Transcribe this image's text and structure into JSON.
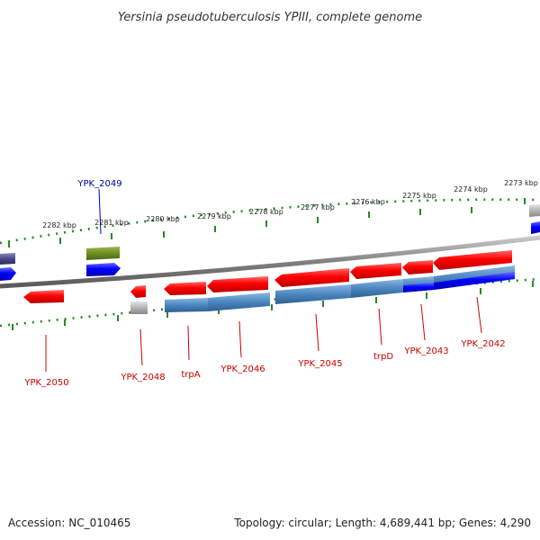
{
  "title": "Yersinia pseudotuberculosis YPIII, complete genome",
  "scale_labels": [
    "2282 kbp",
    "2281 kbp",
    "2280 kbp",
    "2279 kbp",
    "2278 kbp",
    "2277 kbp",
    "2276 kbp",
    "2275 kbp",
    "2274 kbp",
    "2273 kbp"
  ],
  "genes": [
    {
      "name": "YPK_2049",
      "color": "#0000aa"
    },
    {
      "name": "YPK_2050",
      "color": "#cc0000"
    },
    {
      "name": "YPK_2048",
      "color": "#cc0000"
    },
    {
      "name": "trpA",
      "color": "#cc0000"
    },
    {
      "name": "YPK_2046",
      "color": "#cc0000"
    },
    {
      "name": "YPK_2045",
      "color": "#cc0000"
    },
    {
      "name": "trpD",
      "color": "#cc0000"
    },
    {
      "name": "YPK_2043",
      "color": "#cc0000"
    },
    {
      "name": "YPK_2042",
      "color": "#cc0000"
    }
  ],
  "colors": {
    "forward_cds": "#ff0000",
    "blue_feature": "#0000ff",
    "steelblue_feature": "#4a86c0",
    "olive_feature": "#6b8e23",
    "grey_feature": "#aaaaaa",
    "backbone": "#888888",
    "tick": "#228b22"
  },
  "footer": {
    "accession": "Accession: NC_010465",
    "summary": "Topology: circular; Length: 4,689,441 bp; Genes: 4,290"
  }
}
